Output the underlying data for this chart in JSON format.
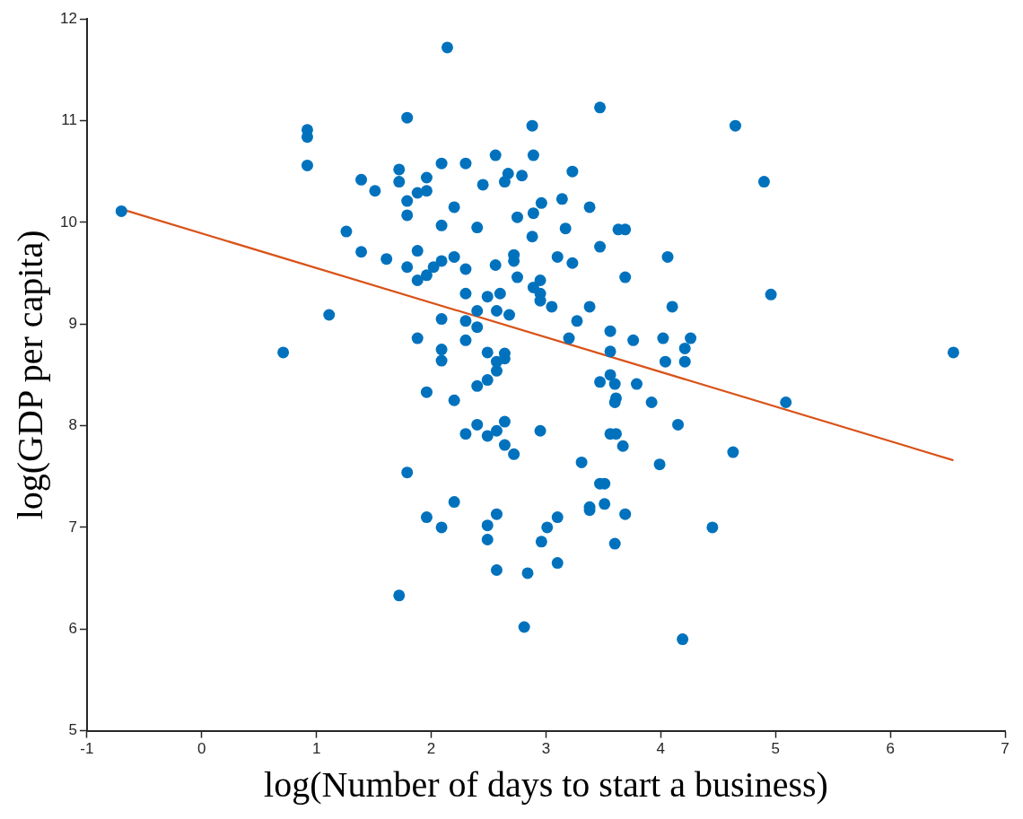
{
  "chart_data": {
    "type": "scatter",
    "xlabel": "log(Number of days to start a business)",
    "ylabel": "log(GDP per capita)",
    "xlim": [
      -1,
      7
    ],
    "xticks": [
      -1,
      0,
      1,
      2,
      3,
      4,
      5,
      6,
      7
    ],
    "ylim": [
      5,
      12
    ],
    "yticks": [
      5,
      6,
      7,
      8,
      9,
      10,
      11,
      12
    ],
    "grid": false,
    "legend": false,
    "marker": "circle",
    "series": [
      {
        "type": "scatter",
        "color": "#0072bd",
        "x": [
          -0.7,
          2.14,
          0.71,
          0.92,
          0.92,
          0.92,
          1.11,
          1.26,
          1.39,
          1.39,
          1.51,
          1.61,
          1.72,
          1.72,
          1.72,
          1.79,
          1.79,
          1.79,
          1.79,
          1.79,
          1.88,
          1.88,
          1.88,
          1.88,
          1.96,
          1.96,
          1.96,
          1.96,
          1.96,
          2.02,
          2.09,
          2.09,
          2.09,
          2.09,
          2.09,
          2.09,
          2.09,
          2.2,
          2.2,
          2.2,
          2.2,
          2.3,
          2.3,
          2.3,
          2.3,
          2.3,
          2.3,
          2.4,
          2.4,
          2.4,
          2.4,
          2.4,
          2.45,
          2.49,
          2.49,
          2.49,
          2.49,
          2.49,
          2.49,
          2.56,
          2.56,
          2.57,
          2.57,
          2.57,
          2.57,
          2.57,
          2.57,
          2.6,
          2.64,
          2.64,
          2.64,
          2.64,
          2.64,
          2.67,
          2.68,
          2.72,
          2.72,
          2.72,
          2.75,
          2.75,
          2.79,
          2.81,
          2.84,
          2.88,
          2.89,
          2.88,
          2.89,
          2.89,
          2.95,
          2.95,
          2.95,
          2.95,
          2.96,
          2.96,
          3.01,
          3.05,
          3.1,
          3.1,
          3.1,
          3.14,
          3.17,
          3.2,
          3.23,
          3.23,
          3.27,
          3.31,
          3.38,
          3.38,
          3.38,
          3.38,
          3.47,
          3.47,
          3.47,
          3.47,
          3.51,
          3.51,
          3.56,
          3.56,
          3.56,
          3.56,
          3.6,
          3.61,
          3.6,
          3.61,
          3.6,
          3.63,
          3.69,
          3.69,
          3.67,
          3.69,
          3.76,
          3.79,
          3.92,
          3.99,
          4.02,
          4.04,
          4.06,
          4.1,
          4.15,
          4.19,
          4.21,
          4.21,
          4.26,
          4.45,
          4.63,
          4.65,
          4.9,
          4.96,
          5.09,
          6.55
        ],
        "values": [
          10.11,
          11.72,
          8.72,
          10.91,
          10.84,
          10.56,
          9.09,
          9.91,
          10.42,
          9.71,
          10.31,
          9.64,
          6.33,
          10.52,
          10.4,
          11.03,
          10.21,
          10.07,
          9.56,
          7.54,
          10.29,
          9.72,
          9.43,
          8.86,
          10.44,
          10.31,
          9.48,
          8.33,
          7.1,
          9.56,
          10.58,
          9.97,
          9.62,
          9.05,
          8.75,
          8.64,
          7.0,
          10.15,
          9.66,
          8.25,
          7.25,
          10.58,
          9.54,
          9.3,
          9.03,
          8.84,
          7.92,
          9.95,
          9.13,
          8.97,
          8.39,
          8.01,
          10.37,
          9.27,
          8.72,
          8.45,
          7.9,
          7.02,
          6.88,
          10.66,
          9.58,
          9.13,
          8.63,
          8.54,
          7.95,
          7.13,
          6.58,
          9.3,
          10.4,
          8.71,
          8.66,
          8.04,
          7.81,
          10.48,
          9.09,
          9.68,
          9.62,
          7.72,
          10.05,
          9.46,
          10.46,
          6.02,
          6.55,
          10.95,
          10.66,
          9.86,
          10.09,
          9.36,
          9.43,
          9.3,
          9.23,
          7.95,
          10.19,
          6.86,
          7.0,
          9.17,
          7.1,
          6.65,
          9.66,
          10.23,
          9.94,
          8.86,
          10.5,
          9.6,
          9.03,
          7.64,
          10.15,
          9.17,
          7.2,
          7.17,
          11.13,
          9.76,
          8.43,
          7.43,
          7.43,
          7.23,
          8.93,
          8.73,
          8.5,
          7.92,
          8.41,
          8.27,
          8.23,
          7.92,
          6.84,
          9.93,
          9.93,
          9.46,
          7.8,
          7.13,
          8.84,
          8.41,
          8.23,
          7.62,
          8.86,
          8.63,
          9.66,
          9.17,
          8.01,
          5.9,
          8.76,
          8.63,
          8.86,
          7.0,
          7.74,
          10.95,
          10.4,
          9.29,
          8.23,
          8.72
        ]
      },
      {
        "type": "line",
        "color": "#d95319",
        "marker": "none",
        "x": [
          -0.7,
          6.55
        ],
        "values": [
          10.13,
          7.66
        ]
      }
    ]
  }
}
